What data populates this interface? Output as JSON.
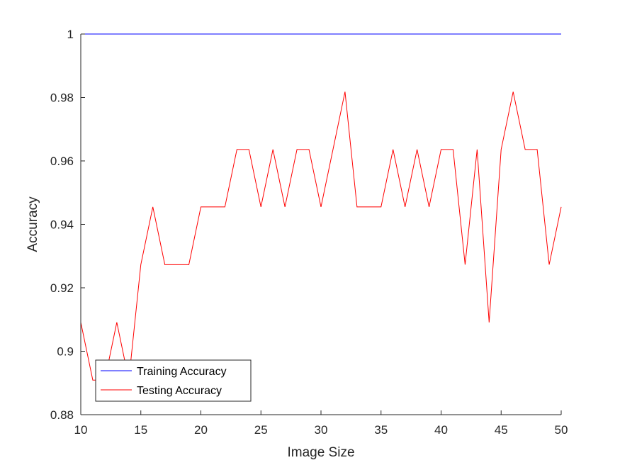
{
  "chart_data": {
    "type": "line",
    "xlabel": "Image Size",
    "ylabel": "Accuracy",
    "xlim": [
      10,
      50
    ],
    "ylim": [
      0.88,
      1.0
    ],
    "xticks": [
      10,
      15,
      20,
      25,
      30,
      35,
      40,
      45,
      50
    ],
    "yticks": [
      0.88,
      0.9,
      0.92,
      0.94,
      0.96,
      0.98,
      1.0
    ],
    "ytick_labels": [
      "0.88",
      "0.9",
      "0.92",
      "0.94",
      "0.96",
      "0.98",
      "1"
    ],
    "grid": false,
    "legend_position": "bottom-left",
    "x": [
      10,
      11,
      12,
      13,
      14,
      15,
      16,
      17,
      18,
      19,
      20,
      21,
      22,
      23,
      24,
      25,
      26,
      27,
      28,
      29,
      30,
      31,
      32,
      33,
      34,
      35,
      36,
      37,
      38,
      39,
      40,
      41,
      42,
      43,
      44,
      45,
      46,
      47,
      48,
      49,
      50
    ],
    "series": [
      {
        "name": "Training Accuracy",
        "color": "#0000ff",
        "values": [
          1,
          1,
          1,
          1,
          1,
          1,
          1,
          1,
          1,
          1,
          1,
          1,
          1,
          1,
          1,
          1,
          1,
          1,
          1,
          1,
          1,
          1,
          1,
          1,
          1,
          1,
          1,
          1,
          1,
          1,
          1,
          1,
          1,
          1,
          1,
          1,
          1,
          1,
          1,
          1,
          1
        ]
      },
      {
        "name": "Testing Accuracy",
        "color": "#ff0000",
        "values": [
          0.9091,
          0.8909,
          0.8909,
          0.9091,
          0.8909,
          0.9273,
          0.9455,
          0.9273,
          0.9273,
          0.9273,
          0.9455,
          0.9455,
          0.9455,
          0.9636,
          0.9636,
          0.9455,
          0.9636,
          0.9455,
          0.9636,
          0.9636,
          0.9455,
          0.9636,
          0.9818,
          0.9455,
          0.9455,
          0.9455,
          0.9636,
          0.9455,
          0.9636,
          0.9455,
          0.9636,
          0.9636,
          0.9273,
          0.9636,
          0.9091,
          0.9636,
          0.9818,
          0.9636,
          0.9636,
          0.9273,
          0.9455
        ]
      }
    ]
  }
}
